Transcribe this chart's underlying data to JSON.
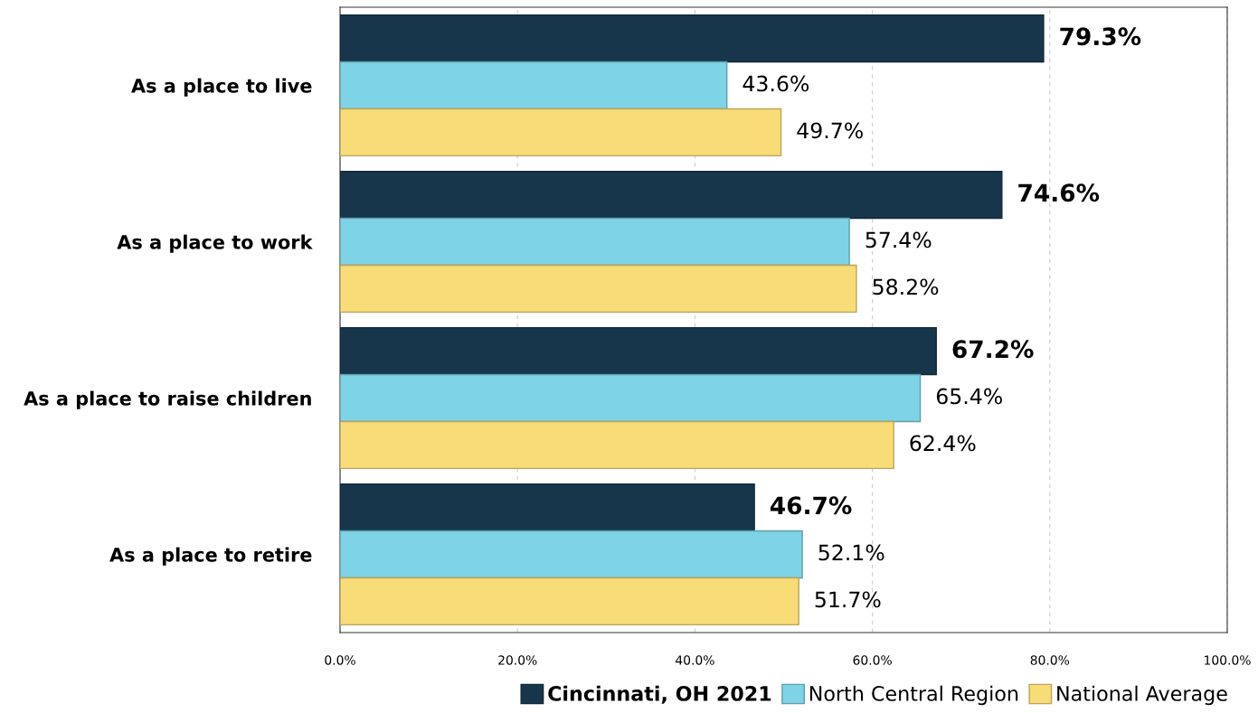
{
  "chart_data": {
    "type": "bar",
    "orientation": "horizontal",
    "categories": [
      "As a place to live",
      "As a place to work",
      "As a place to raise children",
      "As a place to retire"
    ],
    "series": [
      {
        "name": "Cincinnati, OH 2021",
        "color": "#17364b",
        "values": [
          79.3,
          74.6,
          67.2,
          46.7
        ],
        "value_labels": [
          "79.3%",
          "74.6%",
          "67.2%",
          "46.7%"
        ]
      },
      {
        "name": "North Central Region",
        "color": "#7fd3e6",
        "values": [
          43.6,
          57.4,
          65.4,
          52.1
        ],
        "value_labels": [
          "43.6%",
          "57.4%",
          "65.4%",
          "52.1%"
        ]
      },
      {
        "name": "National Average",
        "color": "#f8dc78",
        "values": [
          49.7,
          58.2,
          62.4,
          51.7
        ],
        "value_labels": [
          "49.7%",
          "58.2%",
          "62.4%",
          "51.7%"
        ]
      }
    ],
    "xlim": [
      0,
      100
    ],
    "xticks": [
      {
        "value": 0,
        "label": "0.0%"
      },
      {
        "value": 20,
        "label": "20.0%"
      },
      {
        "value": 40,
        "label": "40.0%"
      },
      {
        "value": 60,
        "label": "60.0%"
      },
      {
        "value": 80,
        "label": "80.0%"
      },
      {
        "value": 100,
        "label": "100.0%"
      }
    ],
    "grid": "x",
    "legend": "bottom right"
  }
}
